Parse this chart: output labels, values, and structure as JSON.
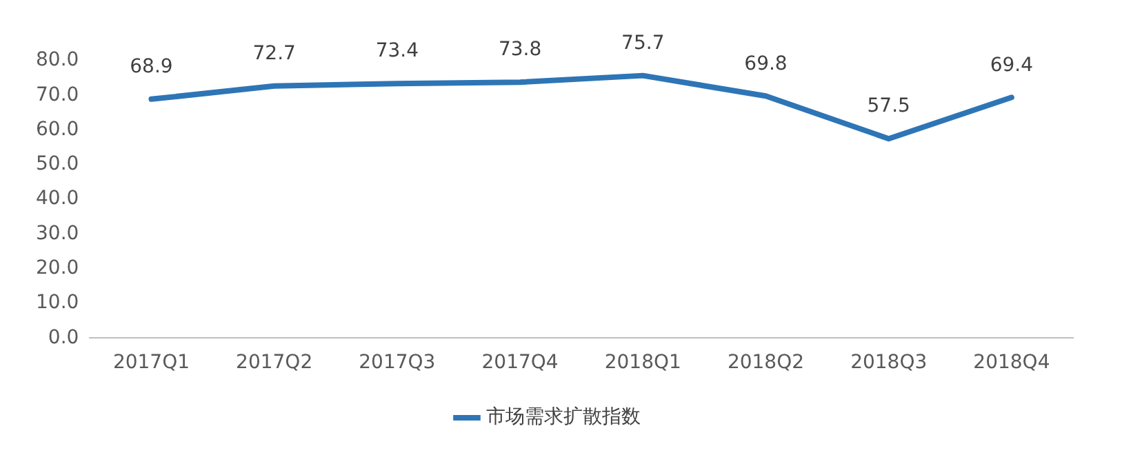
{
  "chart_data": {
    "type": "line",
    "categories": [
      "2017Q1",
      "2017Q2",
      "2017Q3",
      "2017Q4",
      "2018Q1",
      "2018Q2",
      "2018Q3",
      "2018Q4"
    ],
    "series": [
      {
        "name": "市场需求扩散指数",
        "color": "#2e75b6",
        "values": [
          68.9,
          72.7,
          73.4,
          73.8,
          75.7,
          69.8,
          57.5,
          69.4
        ]
      }
    ],
    "ylim": [
      0,
      80
    ],
    "yticks": [
      {
        "value": 0,
        "label": "0.0"
      },
      {
        "value": 10,
        "label": "10.0"
      },
      {
        "value": 20,
        "label": "20.0"
      },
      {
        "value": 30,
        "label": "30.0"
      },
      {
        "value": 40,
        "label": "40.0"
      },
      {
        "value": 50,
        "label": "50.0"
      },
      {
        "value": 60,
        "label": "60.0"
      },
      {
        "value": 70,
        "label": "70.0"
      },
      {
        "value": 80,
        "label": "80.0"
      }
    ],
    "grid": false,
    "legend": "bottom",
    "marker": "none",
    "line_style": "solid",
    "data_labels": true
  }
}
